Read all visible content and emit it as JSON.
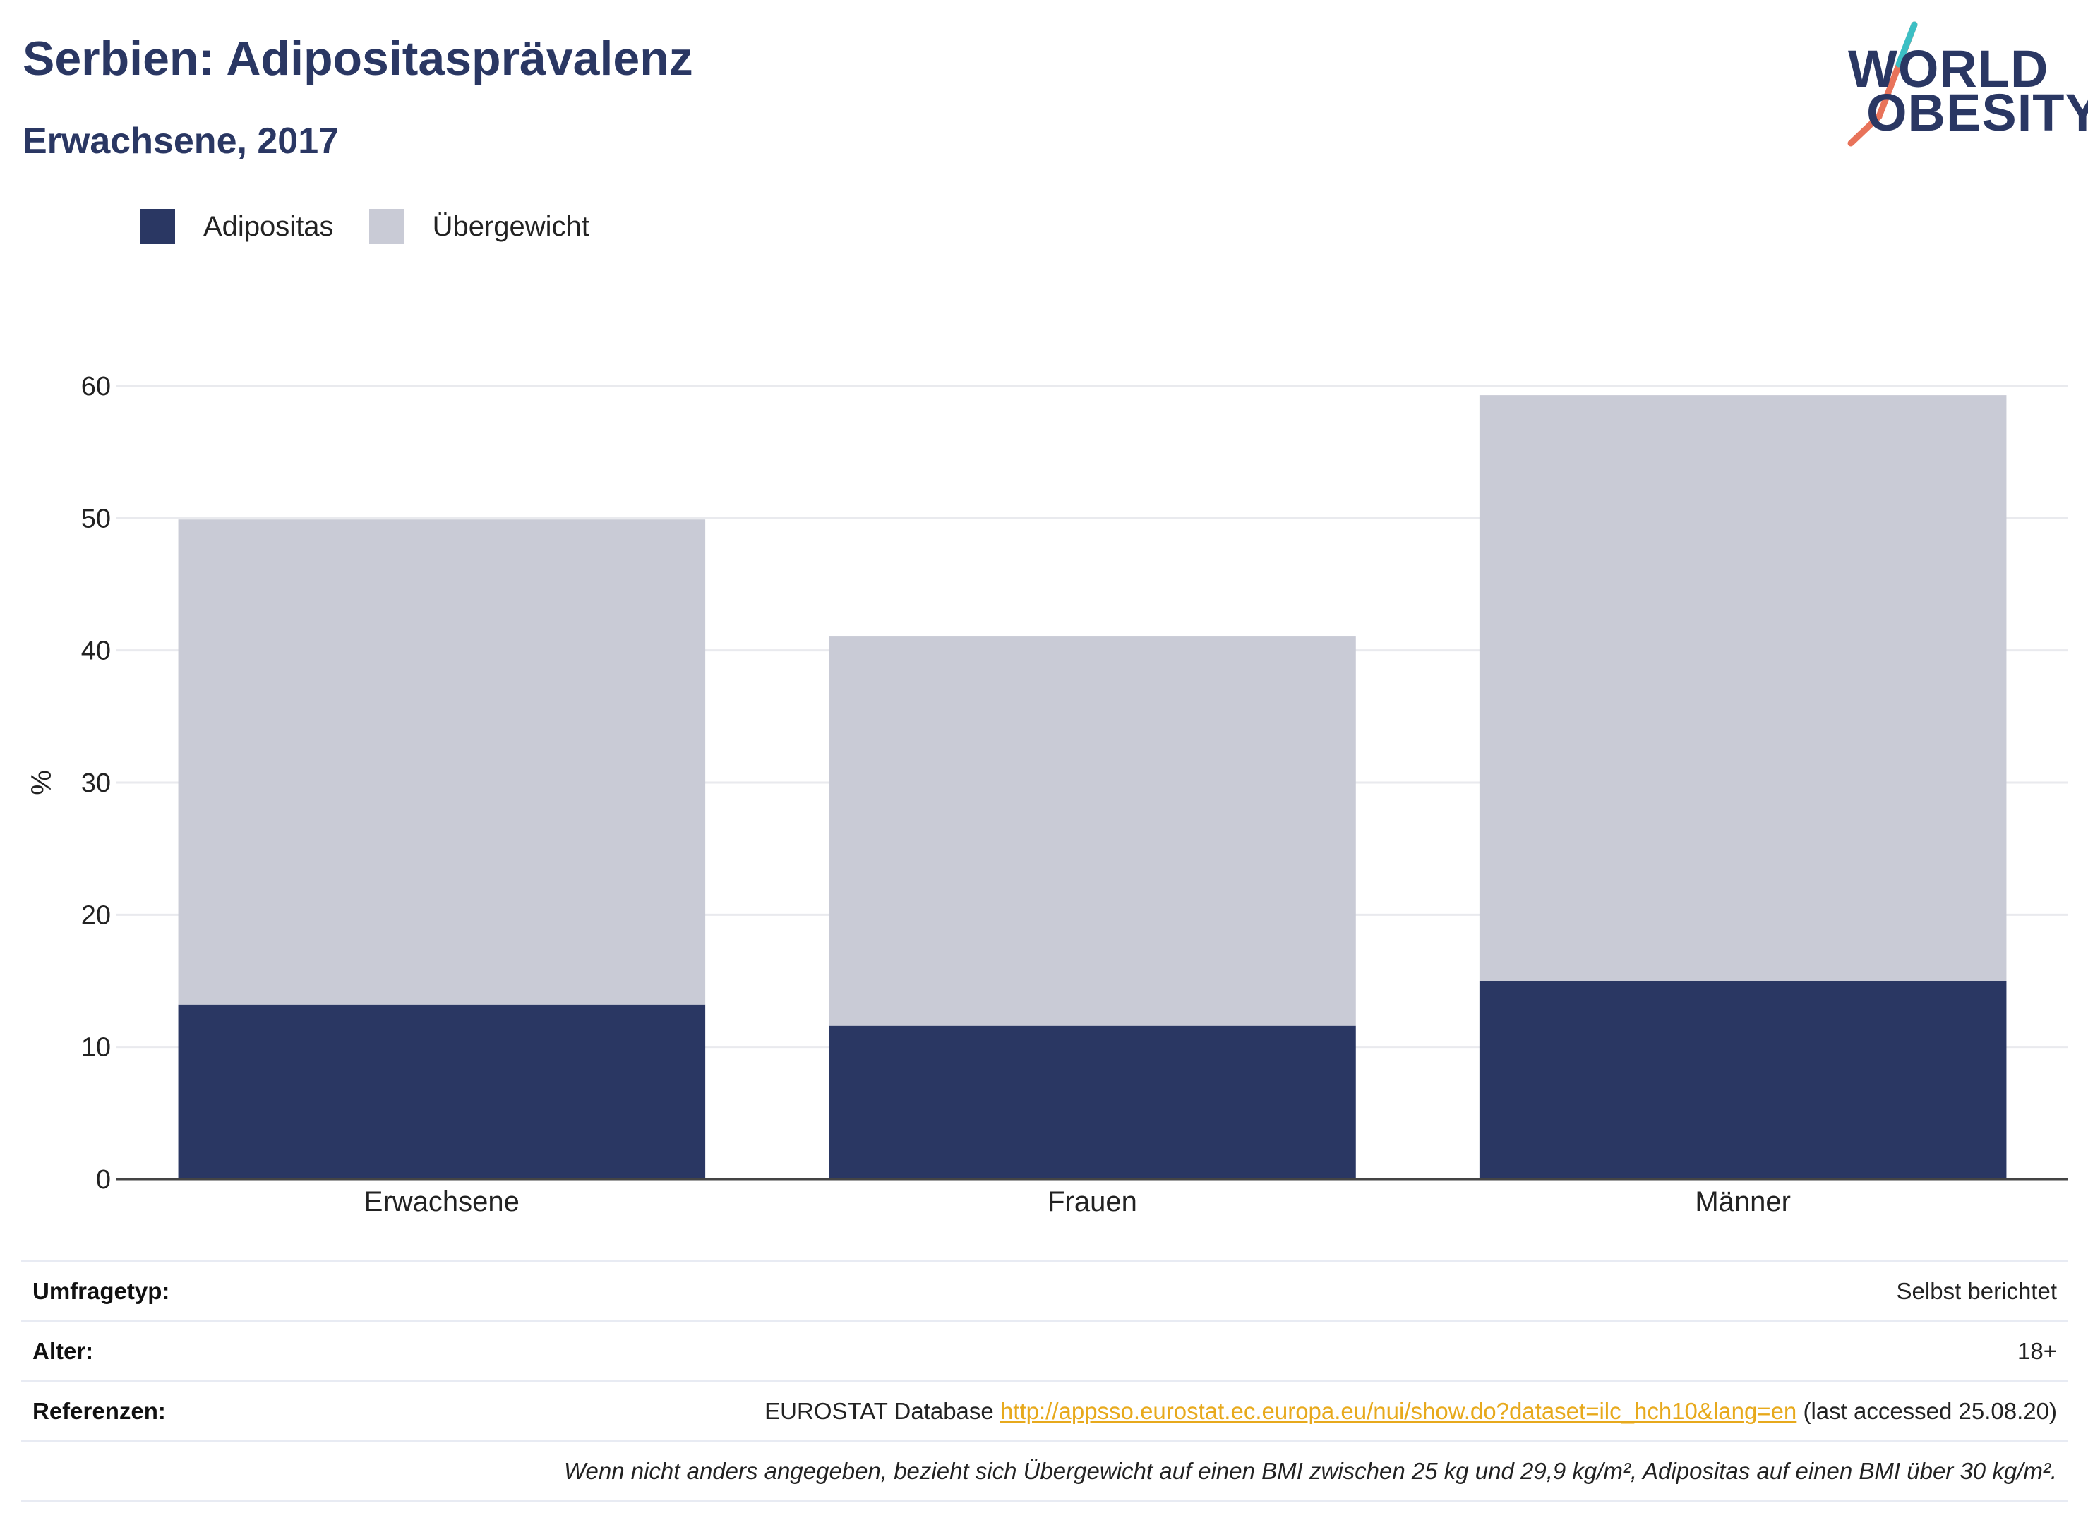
{
  "header": {
    "title": "Serbien: Adipositasprävalenz",
    "subtitle": "Erwachsene, 2017"
  },
  "logo": {
    "line1": "WORLD",
    "line2": "OBESITY",
    "colors": {
      "text": "#2a3763",
      "slash_top": "#3cbfc4",
      "slash_bottom": "#e8735a"
    }
  },
  "legend": [
    {
      "label": "Adipositas",
      "color": "#2a3763"
    },
    {
      "label": "Übergewicht",
      "color": "#c9cbd6"
    }
  ],
  "chart_data": {
    "type": "bar",
    "stacked": true,
    "categories": [
      "Erwachsene",
      "Frauen",
      "Männer"
    ],
    "series": [
      {
        "name": "Adipositas",
        "color": "#2a3763",
        "values": [
          13.2,
          11.6,
          15.0
        ]
      },
      {
        "name": "Übergewicht",
        "color": "#c9cbd6",
        "values": [
          36.7,
          29.5,
          44.3
        ]
      }
    ],
    "ylabel": "%",
    "xlabel": "",
    "ylim": [
      0,
      60
    ],
    "yticks": [
      0,
      10,
      20,
      30,
      40,
      50,
      60
    ],
    "grid": true
  },
  "info": {
    "survey_label": "Umfragetyp:",
    "survey_value": "Selbst berichtet",
    "age_label": "Alter:",
    "age_value": "18+",
    "ref_label": "Referenzen:",
    "ref_prefix": "EUROSTAT Database",
    "ref_link": "http://appsso.eurostat.ec.europa.eu/nui/show.do?dataset=ilc_hch10&lang=en",
    "ref_suffix": "(last accessed 25.08.20)",
    "note": "Wenn nicht anders angegeben, bezieht sich Übergewicht auf einen BMI zwischen 25 kg und 29,9 kg/m², Adipositas auf einen BMI über 30 kg/m²."
  }
}
